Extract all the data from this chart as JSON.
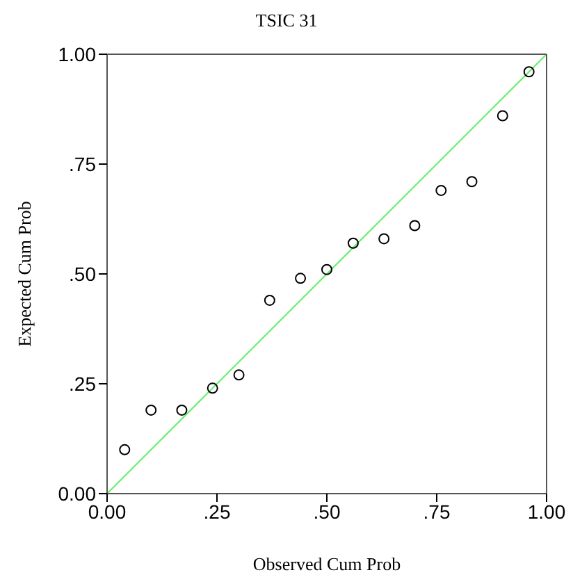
{
  "chart_data": {
    "type": "scatter",
    "title": "TSIC 31",
    "xlabel": "Observed Cum Prob",
    "ylabel": "Expected Cum Prob",
    "xlim": [
      0,
      1
    ],
    "ylim": [
      0,
      1
    ],
    "xticks": [
      {
        "value": 0,
        "label": "0.00"
      },
      {
        "value": 0.25,
        "label": ".25"
      },
      {
        "value": 0.5,
        "label": ".50"
      },
      {
        "value": 0.75,
        "label": ".75"
      },
      {
        "value": 1,
        "label": "1.00"
      }
    ],
    "yticks": [
      {
        "value": 0,
        "label": "0.00"
      },
      {
        "value": 0.25,
        "label": ".25"
      },
      {
        "value": 0.5,
        "label": ".50"
      },
      {
        "value": 0.75,
        "label": ".75"
      },
      {
        "value": 1,
        "label": "1.00"
      }
    ],
    "series": [
      {
        "marker": "circle",
        "color": "#000000",
        "x": [
          0.04,
          0.1,
          0.17,
          0.24,
          0.3,
          0.37,
          0.44,
          0.5,
          0.56,
          0.63,
          0.7,
          0.76,
          0.83,
          0.9,
          0.96
        ],
        "values": [
          0.1,
          0.19,
          0.19,
          0.24,
          0.27,
          0.44,
          0.49,
          0.51,
          0.57,
          0.58,
          0.61,
          0.69,
          0.71,
          0.86,
          0.96
        ]
      },
      {
        "type": "line",
        "color": "#66ee66",
        "x": [
          0,
          1
        ],
        "values": [
          0,
          1
        ]
      }
    ]
  }
}
